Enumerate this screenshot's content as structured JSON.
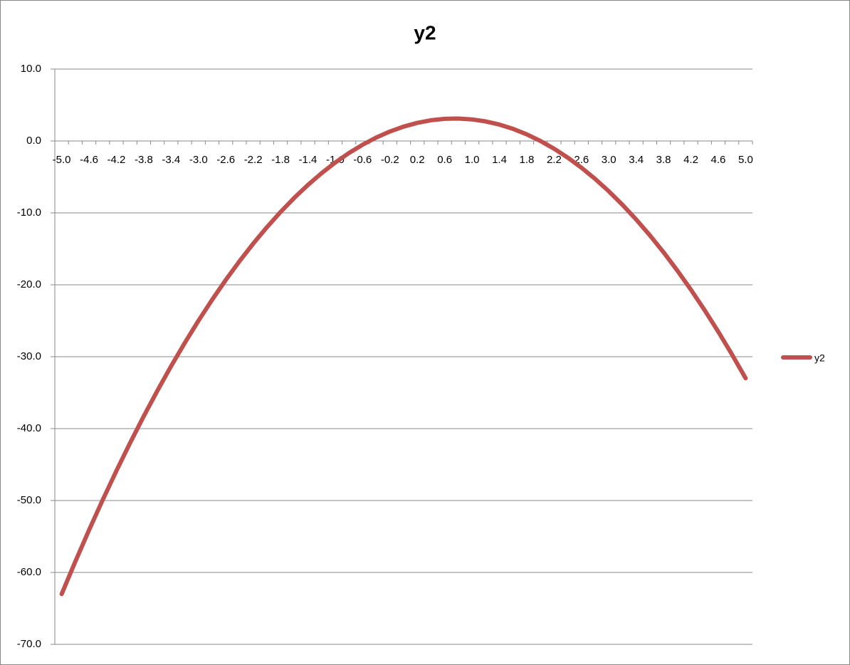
{
  "chart_data": {
    "type": "line",
    "title": "y2",
    "categories": [
      "-5.0",
      null,
      "-4.6",
      null,
      "-4.2",
      null,
      "-3.8",
      null,
      "-3.4",
      null,
      "-3.0",
      null,
      "-2.6",
      null,
      "-2.2",
      null,
      "-1.8",
      null,
      "-1.4",
      null,
      "-1.0",
      null,
      "-0.6",
      null,
      "-0.2",
      null,
      "0.2",
      null,
      "0.6",
      null,
      "1.0",
      null,
      "1.4",
      null,
      "1.8",
      null,
      "2.2",
      null,
      "2.6",
      null,
      "3.0",
      null,
      "3.4",
      null,
      "3.8",
      null,
      "4.2",
      null,
      "4.6",
      null,
      "5.0"
    ],
    "series": [
      {
        "name": "y2",
        "color": "#c0504d",
        "values": [
          -63,
          -58.48,
          -54.12,
          -49.92,
          -45.88,
          -42,
          -38.28,
          -34.72,
          -31.32,
          -28.08,
          -25,
          -22.08,
          -19.32,
          -16.72,
          -14.28,
          -12,
          -9.88,
          -7.92,
          -6.12,
          -4.48,
          -3,
          -1.68,
          -0.52,
          0.48,
          1.32,
          2,
          2.52,
          2.88,
          3.08,
          3.12,
          3,
          2.72,
          2.28,
          1.68,
          0.92,
          0,
          -1.08,
          -2.32,
          -3.72,
          -5.28,
          -7,
          -8.88,
          -10.92,
          -13.12,
          -15.48,
          -18,
          -20.68,
          -23.52,
          -26.52,
          -29.68,
          -33
        ]
      }
    ],
    "ylim": [
      -70,
      10
    ],
    "yticks": [
      {
        "value": -70,
        "label": "-70.0"
      },
      {
        "value": -60,
        "label": "-60.0"
      },
      {
        "value": -50,
        "label": "-50.0"
      },
      {
        "value": -40,
        "label": "-40.0"
      },
      {
        "value": -30,
        "label": "-30.0"
      },
      {
        "value": -20,
        "label": "-20.0"
      },
      {
        "value": -10,
        "label": "-10.0"
      },
      {
        "value": 0,
        "label": "0.0"
      },
      {
        "value": 10,
        "label": "10.0"
      }
    ],
    "grid": true,
    "legend": "right"
  }
}
